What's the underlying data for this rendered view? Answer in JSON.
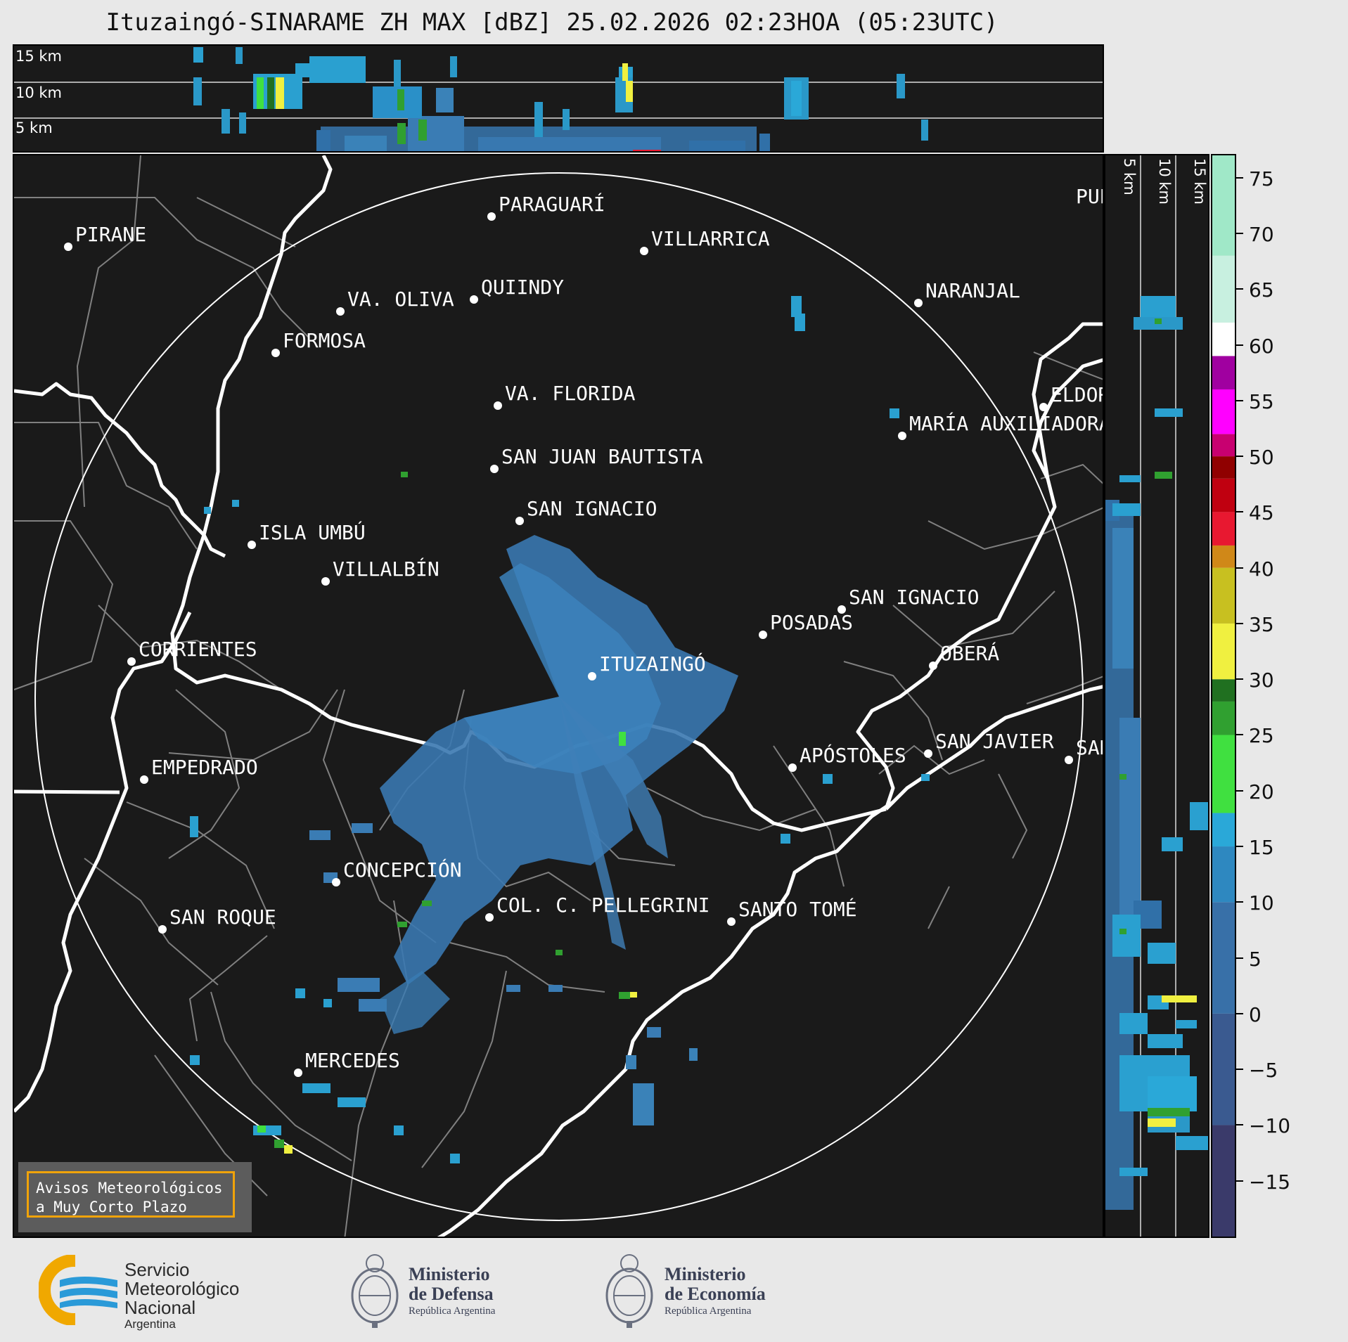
{
  "title": "Ituzaingó-SINARAME ZH MAX [dBZ] 25.02.2026 02:23HOA (05:23UTC)",
  "top_panel": {
    "labels": [
      "15 km",
      "10 km",
      "5 km"
    ]
  },
  "side_panel": {
    "labels": [
      "5 km",
      "10 km",
      "15 km"
    ]
  },
  "colorbar": {
    "ticks": [
      "75",
      "70",
      "65",
      "60",
      "55",
      "50",
      "45",
      "40",
      "35",
      "30",
      "25",
      "20",
      "15",
      "10",
      "5",
      "0",
      "−5",
      "−10",
      "−15"
    ],
    "range": [
      -20,
      77
    ],
    "colors": {
      "-20": "#3a3a6a",
      "-10": "#3a5a90",
      "0": "#3870a8",
      "10": "#2e88c0",
      "15": "#2aa8d8",
      "18": "#40e040",
      "25": "#30a030",
      "28": "#207020",
      "30": "#f0f040",
      "35": "#c8c020",
      "40": "#d08818",
      "42": "#e81830",
      "45": "#c00010",
      "48": "#900000",
      "50": "#c80070",
      "52": "#ff00ff",
      "56": "#a000a0",
      "59": "#ffffff",
      "62": "#c8f0e0",
      "68": "#a0e8c8",
      "77": "#80d8b8"
    }
  },
  "map": {
    "radar_site": "ITUZAINGÓ",
    "cities": [
      {
        "name": "PARAGUARÍ"
      },
      {
        "name": "VILLARRICA"
      },
      {
        "name": "PIRANE"
      },
      {
        "name": "VA. OLIVA"
      },
      {
        "name": "QUIINDY"
      },
      {
        "name": "NARANJAL"
      },
      {
        "name": "FORMOSA"
      },
      {
        "name": "VA. FLORIDA"
      },
      {
        "name": "ELDORADO"
      },
      {
        "name": "MARÍA AUXILIADORA"
      },
      {
        "name": "SAN JUAN BAUTISTA"
      },
      {
        "name": "SAN IGNACIO"
      },
      {
        "name": "ISLA UMBÚ"
      },
      {
        "name": "VILLALBÍN"
      },
      {
        "name": "SAN IGNACIO"
      },
      {
        "name": "POSADAS"
      },
      {
        "name": "CORRIENTES"
      },
      {
        "name": "OBERÁ"
      },
      {
        "name": "ITUZAINGÓ"
      },
      {
        "name": "APÓSTOLES"
      },
      {
        "name": "SAN JAVIER"
      },
      {
        "name": "SAN"
      },
      {
        "name": "EMPEDRADO"
      },
      {
        "name": "CONCEPCIÓN"
      },
      {
        "name": "COL. C. PELLEGRINI"
      },
      {
        "name": "SANTO TOMÉ"
      },
      {
        "name": "SAN ROQUE"
      },
      {
        "name": "MERCEDES"
      },
      {
        "name": "PUERTO"
      }
    ],
    "warning_box": [
      "Avisos Meteorológicos",
      "a Muy Corto Plazo"
    ]
  },
  "footer": {
    "smn": [
      "Servicio",
      "Meteorológico",
      "Nacional",
      "Argentina"
    ],
    "defensa": [
      "Ministerio",
      "de Defensa",
      "República Argentina"
    ],
    "economia": [
      "Ministerio",
      "de Economía",
      "República Argentina"
    ],
    "accent": "#f0a800",
    "smn_blue": "#2a9ad8"
  }
}
